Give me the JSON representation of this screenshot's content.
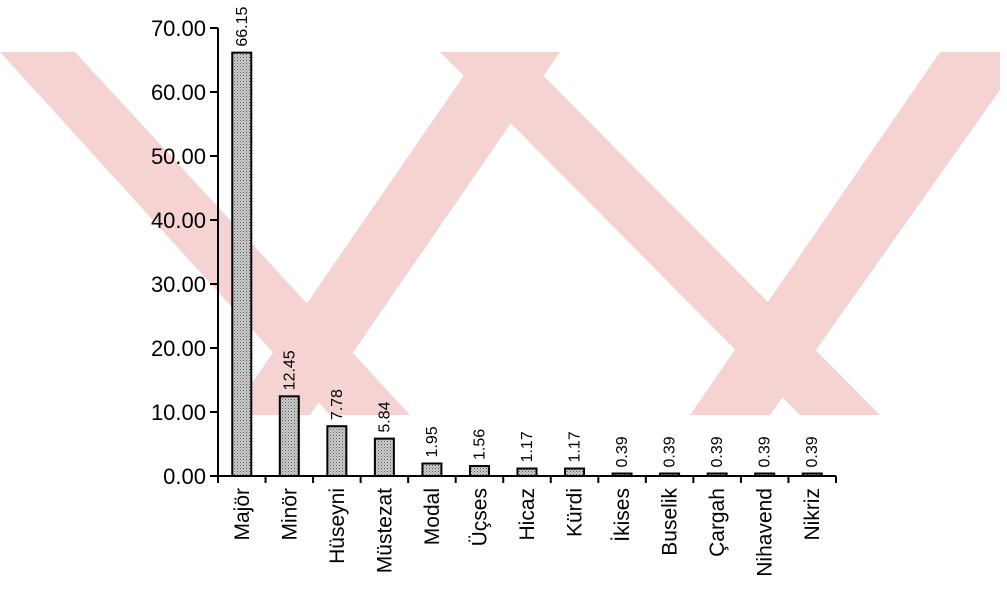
{
  "chart_data": {
    "type": "bar",
    "categories": [
      "Majör",
      "Minör",
      "Hüseyni",
      "Müstezat",
      "Modal",
      "Üçses",
      "Hicaz",
      "Kürdi",
      "İkises",
      "Buselik",
      "Çargah",
      "Nihavend",
      "Nikriz"
    ],
    "values": [
      66.15,
      12.45,
      7.78,
      5.84,
      1.95,
      1.56,
      1.17,
      1.17,
      0.39,
      0.39,
      0.39,
      0.39,
      0.39
    ],
    "data_labels": [
      "66.15",
      "12.45",
      "7.78",
      "5.84",
      "1.95",
      "1.56",
      "1.17",
      "1.17",
      "0.39",
      "0.39",
      "0.39",
      "0.39",
      "0.39"
    ],
    "yticks": [
      "0.00",
      "10.00",
      "20.00",
      "30.00",
      "40.00",
      "50.00",
      "60.00",
      "70.00"
    ],
    "ylim": [
      0,
      70
    ],
    "title": "",
    "xlabel": "",
    "ylabel": "",
    "grid": false,
    "bar_fill": "#c9c9c9",
    "bar_stroke": "#000000"
  },
  "watermark": {
    "color": "#f6d3d3"
  }
}
